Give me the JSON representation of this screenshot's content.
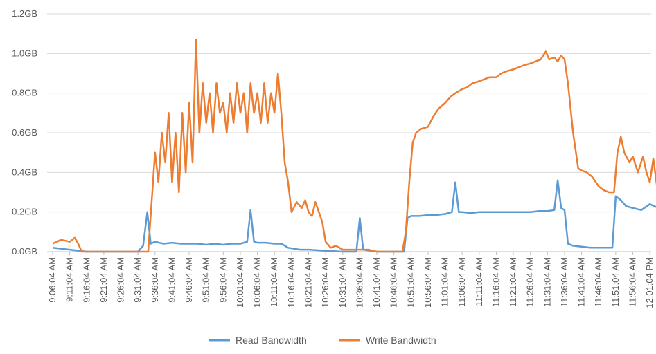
{
  "chart_data": {
    "type": "line",
    "title": "",
    "xlabel": "",
    "ylabel": "",
    "ylim": [
      0,
      1.2
    ],
    "y_ticks": [
      "0.0GB",
      "0.2GB",
      "0.4GB",
      "0.6GB",
      "0.8GB",
      "1.0GB",
      "1.2GB"
    ],
    "grid": true,
    "legend_position": "bottom",
    "categories": [
      "9:06:04 AM",
      "9:11:04 AM",
      "9:16:04 AM",
      "9:21:04 AM",
      "9:26:04 AM",
      "9:31:04 AM",
      "9:36:04 AM",
      "9:41:04 AM",
      "9:46:04 AM",
      "9:51:04 AM",
      "9:56:04 AM",
      "10:01:04 AM",
      "10:06:04 AM",
      "10:11:04 AM",
      "10:16:04 AM",
      "10:21:04 AM",
      "10:26:04 AM",
      "10:31:04 AM",
      "10:36:04 AM",
      "10:41:04 AM",
      "10:46:04 AM",
      "10:51:04 AM",
      "10:56:04 AM",
      "11:01:04 AM",
      "11:06:04 AM",
      "11:11:04 AM",
      "11:16:04 AM",
      "11:21:04 AM",
      "11:26:04 AM",
      "11:31:04 AM",
      "11:36:04 AM",
      "11:41:04 AM",
      "11:46:04 AM",
      "11:51:04 AM",
      "11:56:04 AM",
      "12:01:04 PM"
    ],
    "series": [
      {
        "name": "Read Bandwidth",
        "color": "#5b9bd5",
        "points": [
          [
            0,
            0.02
          ],
          [
            1,
            0.01
          ],
          [
            2,
            0.0
          ],
          [
            3,
            0.0
          ],
          [
            4,
            0.0
          ],
          [
            5,
            0.0
          ],
          [
            5.3,
            0.03
          ],
          [
            5.55,
            0.2
          ],
          [
            5.75,
            0.04
          ],
          [
            6,
            0.05
          ],
          [
            6.5,
            0.04
          ],
          [
            7,
            0.045
          ],
          [
            7.5,
            0.04
          ],
          [
            8,
            0.04
          ],
          [
            8.5,
            0.04
          ],
          [
            9,
            0.035
          ],
          [
            9.5,
            0.04
          ],
          [
            10,
            0.035
          ],
          [
            10.5,
            0.04
          ],
          [
            11,
            0.04
          ],
          [
            11.4,
            0.05
          ],
          [
            11.6,
            0.21
          ],
          [
            11.8,
            0.05
          ],
          [
            12,
            0.045
          ],
          [
            12.5,
            0.045
          ],
          [
            13,
            0.04
          ],
          [
            13.4,
            0.04
          ],
          [
            13.8,
            0.02
          ],
          [
            14.5,
            0.01
          ],
          [
            15,
            0.01
          ],
          [
            16,
            0.005
          ],
          [
            17,
            0.0
          ],
          [
            17.8,
            0.0
          ],
          [
            18.0,
            0.17
          ],
          [
            18.2,
            0.01
          ],
          [
            19,
            0.0
          ],
          [
            20,
            0.0
          ],
          [
            20.6,
            0.0
          ],
          [
            20.8,
            0.17
          ],
          [
            21,
            0.18
          ],
          [
            21.5,
            0.18
          ],
          [
            22,
            0.185
          ],
          [
            22.5,
            0.185
          ],
          [
            23,
            0.19
          ],
          [
            23.4,
            0.2
          ],
          [
            23.6,
            0.35
          ],
          [
            23.8,
            0.2
          ],
          [
            24,
            0.2
          ],
          [
            24.5,
            0.195
          ],
          [
            25,
            0.2
          ],
          [
            25.5,
            0.2
          ],
          [
            26,
            0.2
          ],
          [
            26.5,
            0.2
          ],
          [
            27,
            0.2
          ],
          [
            27.5,
            0.2
          ],
          [
            28,
            0.2
          ],
          [
            28.5,
            0.205
          ],
          [
            29,
            0.205
          ],
          [
            29.4,
            0.21
          ],
          [
            29.6,
            0.36
          ],
          [
            29.8,
            0.22
          ],
          [
            30.0,
            0.21
          ],
          [
            30.2,
            0.04
          ],
          [
            30.5,
            0.03
          ],
          [
            31,
            0.025
          ],
          [
            31.5,
            0.02
          ],
          [
            32,
            0.02
          ],
          [
            32.5,
            0.02
          ],
          [
            32.8,
            0.02
          ],
          [
            33.0,
            0.28
          ],
          [
            33.3,
            0.26
          ],
          [
            33.6,
            0.23
          ],
          [
            34,
            0.22
          ],
          [
            34.5,
            0.21
          ],
          [
            35,
            0.24
          ],
          [
            35.5,
            0.22
          ],
          [
            35.8,
            0.27
          ],
          [
            36,
            0.27
          ]
        ]
      },
      {
        "name": "Write Bandwidth",
        "color": "#ed7d31",
        "points": [
          [
            0,
            0.04
          ],
          [
            0.5,
            0.06
          ],
          [
            1,
            0.05
          ],
          [
            1.3,
            0.07
          ],
          [
            1.5,
            0.04
          ],
          [
            1.7,
            0.0
          ],
          [
            2,
            0.0
          ],
          [
            3,
            0.0
          ],
          [
            4,
            0.0
          ],
          [
            5,
            0.0
          ],
          [
            5.6,
            0.0
          ],
          [
            5.8,
            0.25
          ],
          [
            6.0,
            0.5
          ],
          [
            6.2,
            0.35
          ],
          [
            6.4,
            0.6
          ],
          [
            6.6,
            0.45
          ],
          [
            6.8,
            0.7
          ],
          [
            7.0,
            0.35
          ],
          [
            7.2,
            0.6
          ],
          [
            7.4,
            0.3
          ],
          [
            7.6,
            0.7
          ],
          [
            7.8,
            0.4
          ],
          [
            8.0,
            0.75
          ],
          [
            8.2,
            0.45
          ],
          [
            8.4,
            1.07
          ],
          [
            8.6,
            0.6
          ],
          [
            8.8,
            0.85
          ],
          [
            9.0,
            0.65
          ],
          [
            9.2,
            0.8
          ],
          [
            9.4,
            0.6
          ],
          [
            9.6,
            0.85
          ],
          [
            9.8,
            0.7
          ],
          [
            10,
            0.75
          ],
          [
            10.2,
            0.6
          ],
          [
            10.4,
            0.8
          ],
          [
            10.6,
            0.65
          ],
          [
            10.8,
            0.85
          ],
          [
            11,
            0.7
          ],
          [
            11.2,
            0.8
          ],
          [
            11.4,
            0.6
          ],
          [
            11.6,
            0.85
          ],
          [
            11.8,
            0.7
          ],
          [
            12,
            0.8
          ],
          [
            12.2,
            0.65
          ],
          [
            12.4,
            0.85
          ],
          [
            12.6,
            0.65
          ],
          [
            12.8,
            0.8
          ],
          [
            13,
            0.7
          ],
          [
            13.2,
            0.9
          ],
          [
            13.4,
            0.7
          ],
          [
            13.6,
            0.45
          ],
          [
            13.8,
            0.35
          ],
          [
            14,
            0.2
          ],
          [
            14.3,
            0.25
          ],
          [
            14.6,
            0.22
          ],
          [
            14.8,
            0.26
          ],
          [
            15,
            0.2
          ],
          [
            15.2,
            0.18
          ],
          [
            15.4,
            0.25
          ],
          [
            15.6,
            0.2
          ],
          [
            15.8,
            0.15
          ],
          [
            16.0,
            0.05
          ],
          [
            16.3,
            0.02
          ],
          [
            16.6,
            0.03
          ],
          [
            17,
            0.01
          ],
          [
            17.5,
            0.01
          ],
          [
            18,
            0.01
          ],
          [
            18.5,
            0.01
          ],
          [
            19,
            0.0
          ],
          [
            19.5,
            0.0
          ],
          [
            20,
            0.0
          ],
          [
            20.5,
            0.0
          ],
          [
            20.7,
            0.1
          ],
          [
            20.9,
            0.35
          ],
          [
            21.1,
            0.55
          ],
          [
            21.3,
            0.6
          ],
          [
            21.6,
            0.62
          ],
          [
            22,
            0.63
          ],
          [
            22.3,
            0.68
          ],
          [
            22.6,
            0.72
          ],
          [
            23,
            0.75
          ],
          [
            23.3,
            0.78
          ],
          [
            23.6,
            0.8
          ],
          [
            24,
            0.82
          ],
          [
            24.3,
            0.83
          ],
          [
            24.6,
            0.85
          ],
          [
            25,
            0.86
          ],
          [
            25.3,
            0.87
          ],
          [
            25.6,
            0.88
          ],
          [
            26,
            0.88
          ],
          [
            26.3,
            0.9
          ],
          [
            26.6,
            0.91
          ],
          [
            27,
            0.92
          ],
          [
            27.3,
            0.93
          ],
          [
            27.6,
            0.94
          ],
          [
            28,
            0.95
          ],
          [
            28.3,
            0.96
          ],
          [
            28.6,
            0.97
          ],
          [
            28.9,
            1.01
          ],
          [
            29.1,
            0.97
          ],
          [
            29.4,
            0.98
          ],
          [
            29.6,
            0.96
          ],
          [
            29.8,
            0.99
          ],
          [
            30.0,
            0.97
          ],
          [
            30.2,
            0.85
          ],
          [
            30.5,
            0.6
          ],
          [
            30.8,
            0.42
          ],
          [
            31.0,
            0.41
          ],
          [
            31.3,
            0.4
          ],
          [
            31.6,
            0.38
          ],
          [
            32,
            0.33
          ],
          [
            32.3,
            0.31
          ],
          [
            32.6,
            0.3
          ],
          [
            32.9,
            0.3
          ],
          [
            33.1,
            0.5
          ],
          [
            33.3,
            0.58
          ],
          [
            33.5,
            0.5
          ],
          [
            33.8,
            0.45
          ],
          [
            34,
            0.48
          ],
          [
            34.3,
            0.4
          ],
          [
            34.6,
            0.48
          ],
          [
            34.8,
            0.4
          ],
          [
            35,
            0.35
          ],
          [
            35.2,
            0.47
          ],
          [
            35.4,
            0.34
          ],
          [
            35.6,
            0.3
          ],
          [
            35.8,
            0.33
          ],
          [
            36,
            0.38
          ]
        ]
      }
    ]
  }
}
